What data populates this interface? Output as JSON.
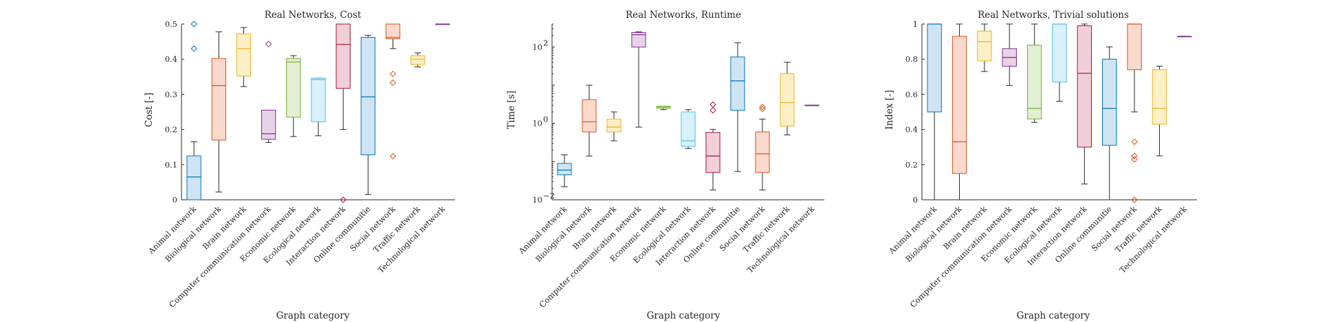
{
  "colors": {
    "palette": [
      {
        "fill": "#cfe4f5",
        "stroke": "#0072bd"
      },
      {
        "fill": "#fbd9cc",
        "stroke": "#d95319"
      },
      {
        "fill": "#fdf0c6",
        "stroke": "#edb120"
      },
      {
        "fill": "#e8d2e8",
        "stroke": "#7e2f8e"
      },
      {
        "fill": "#e1efd2",
        "stroke": "#77ac30"
      },
      {
        "fill": "#d9f1fa",
        "stroke": "#4dbeee"
      },
      {
        "fill": "#f1cfd9",
        "stroke": "#a2142f"
      }
    ],
    "whisker": "#262626"
  },
  "chart_data": [
    {
      "type": "boxplot",
      "title": "Real Networks, Cost",
      "xlabel": "Graph category",
      "ylabel": "Cost [-]",
      "yscale": "linear",
      "ylim": [
        0,
        0.5
      ],
      "yticks": [
        0,
        0.1,
        0.2,
        0.3,
        0.4,
        0.5
      ],
      "ytick_labels": [
        "0",
        "0.1",
        "0.2",
        "0.3",
        "0.4",
        "0.5"
      ],
      "categories": [
        "Animal network",
        "Biological network",
        "Brain network",
        "Computer communication network",
        "Economic network",
        "Ecological network",
        "Interaction network",
        "Online communitie",
        "Social network",
        "Traffic network",
        "Technological network"
      ],
      "boxes": [
        {
          "wlo": 0,
          "q1": 0,
          "med": 0.065,
          "q3": 0.125,
          "whi": 0.165,
          "outliers": [
            0.43,
            0.5
          ]
        },
        {
          "wlo": 0.022,
          "q1": 0.17,
          "med": 0.325,
          "q3": 0.402,
          "whi": 0.478,
          "outliers": []
        },
        {
          "wlo": 0.322,
          "q1": 0.352,
          "med": 0.43,
          "q3": 0.472,
          "whi": 0.49,
          "outliers": []
        },
        {
          "wlo": 0.163,
          "q1": 0.172,
          "med": 0.188,
          "q3": 0.255,
          "whi": 0.255,
          "outliers": [
            0.443
          ]
        },
        {
          "wlo": 0.18,
          "q1": 0.235,
          "med": 0.392,
          "q3": 0.402,
          "whi": 0.41,
          "outliers": []
        },
        {
          "wlo": 0.182,
          "q1": 0.222,
          "med": 0.342,
          "q3": 0.346,
          "whi": 0.346,
          "outliers": []
        },
        {
          "wlo": 0.2,
          "q1": 0.317,
          "med": 0.442,
          "q3": 0.5,
          "whi": 0.5,
          "outliers": [
            0
          ]
        },
        {
          "wlo": 0.015,
          "q1": 0.128,
          "med": 0.293,
          "q3": 0.462,
          "whi": 0.468,
          "outliers": []
        },
        {
          "wlo": 0.43,
          "q1": 0.458,
          "med": 0.462,
          "q3": 0.5,
          "whi": 0.5,
          "outliers": [
            0.358,
            0.333,
            0.124
          ]
        },
        {
          "wlo": 0.378,
          "q1": 0.385,
          "med": 0.4,
          "q3": 0.41,
          "whi": 0.418,
          "outliers": []
        },
        {
          "wlo": 0.5,
          "q1": 0.5,
          "med": 0.5,
          "q3": 0.5,
          "whi": 0.5,
          "outliers": []
        }
      ]
    },
    {
      "type": "boxplot",
      "title": "Real Networks, Runtime",
      "xlabel": "Graph category",
      "ylabel": "Time [s]",
      "yscale": "log",
      "ylim": [
        0.01,
        400
      ],
      "yticks": [
        0.01,
        1,
        100
      ],
      "ytick_labels": [
        "10",
        "10",
        "10"
      ],
      "ytick_exponents": [
        "−2",
        "0",
        "2"
      ],
      "categories": [
        "Animal network",
        "Biological network",
        "Brain network",
        "Computer communication network",
        "Economic network",
        "Ecological network",
        "Interaction network",
        "Online communitie",
        "Social network",
        "Traffic network",
        "Technological network"
      ],
      "boxes": [
        {
          "wlo": 0.022,
          "q1": 0.045,
          "med": 0.06,
          "q3": 0.09,
          "whi": 0.15,
          "outliers": []
        },
        {
          "wlo": 0.14,
          "q1": 0.6,
          "med": 1.1,
          "q3": 4.2,
          "whi": 10,
          "outliers": []
        },
        {
          "wlo": 0.35,
          "q1": 0.6,
          "med": 0.8,
          "q3": 1.3,
          "whi": 2,
          "outliers": []
        },
        {
          "wlo": 0.8,
          "q1": 100,
          "med": 210,
          "q3": 240,
          "whi": 250,
          "outliers": []
        },
        {
          "wlo": 2.3,
          "q1": 2.5,
          "med": 2.7,
          "q3": 2.8,
          "whi": 2.8,
          "outliers": []
        },
        {
          "wlo": 0.22,
          "q1": 0.25,
          "med": 0.35,
          "q3": 2,
          "whi": 2.3,
          "outliers": []
        },
        {
          "wlo": 0.018,
          "q1": 0.052,
          "med": 0.14,
          "q3": 0.58,
          "whi": 0.7,
          "outliers": [
            2.2,
            3.1
          ]
        },
        {
          "wlo": 0.055,
          "q1": 2.2,
          "med": 13,
          "q3": 55,
          "whi": 130,
          "outliers": []
        },
        {
          "wlo": 0.018,
          "q1": 0.052,
          "med": 0.16,
          "q3": 0.6,
          "whi": 1.3,
          "outliers": [
            2.4,
            2.7
          ]
        },
        {
          "wlo": 0.5,
          "q1": 0.85,
          "med": 3.5,
          "q3": 20,
          "whi": 40,
          "outliers": []
        },
        {
          "wlo": 3,
          "q1": 3,
          "med": 3,
          "q3": 3,
          "whi": 3,
          "outliers": []
        }
      ]
    },
    {
      "type": "boxplot",
      "title": "Real Networks, Trivial solutions",
      "xlabel": "Graph category",
      "ylabel": "Index [-]",
      "yscale": "linear",
      "ylim": [
        0,
        1
      ],
      "yticks": [
        0,
        0.2,
        0.4,
        0.6,
        0.8,
        1
      ],
      "ytick_labels": [
        "0",
        "0.2",
        "0.4",
        "0.6",
        "0.8",
        "1"
      ],
      "categories": [
        "Animal network",
        "Biological network",
        "Brain network",
        "Computer communication network",
        "Economic network",
        "Ecological network",
        "Interaction network",
        "Online communitie",
        "Social network",
        "Traffic network",
        "Technological network"
      ],
      "boxes": [
        {
          "wlo": 0,
          "q1": 0.5,
          "med": 1,
          "q3": 1,
          "whi": 1,
          "outliers": []
        },
        {
          "wlo": 0,
          "q1": 0.15,
          "med": 0.33,
          "q3": 0.93,
          "whi": 1,
          "outliers": []
        },
        {
          "wlo": 0.73,
          "q1": 0.79,
          "med": 0.9,
          "q3": 0.96,
          "whi": 1,
          "outliers": []
        },
        {
          "wlo": 0.65,
          "q1": 0.76,
          "med": 0.81,
          "q3": 0.86,
          "whi": 1,
          "outliers": []
        },
        {
          "wlo": 0.44,
          "q1": 0.46,
          "med": 0.52,
          "q3": 0.88,
          "whi": 1,
          "outliers": []
        },
        {
          "wlo": 0.56,
          "q1": 0.67,
          "med": 1,
          "q3": 1,
          "whi": 1,
          "outliers": []
        },
        {
          "wlo": 0.09,
          "q1": 0.3,
          "med": 0.72,
          "q3": 0.99,
          "whi": 1,
          "outliers": []
        },
        {
          "wlo": 0,
          "q1": 0.31,
          "med": 0.52,
          "q3": 0.8,
          "whi": 0.87,
          "outliers": []
        },
        {
          "wlo": 0.5,
          "q1": 0.74,
          "med": 1,
          "q3": 1,
          "whi": 1,
          "outliers": [
            0.33,
            0.25,
            0.23,
            0
          ]
        },
        {
          "wlo": 0.25,
          "q1": 0.43,
          "med": 0.52,
          "q3": 0.74,
          "whi": 0.76,
          "outliers": []
        },
        {
          "wlo": 0.93,
          "q1": 0.93,
          "med": 0.93,
          "q3": 0.93,
          "whi": 0.93,
          "outliers": []
        }
      ]
    }
  ]
}
